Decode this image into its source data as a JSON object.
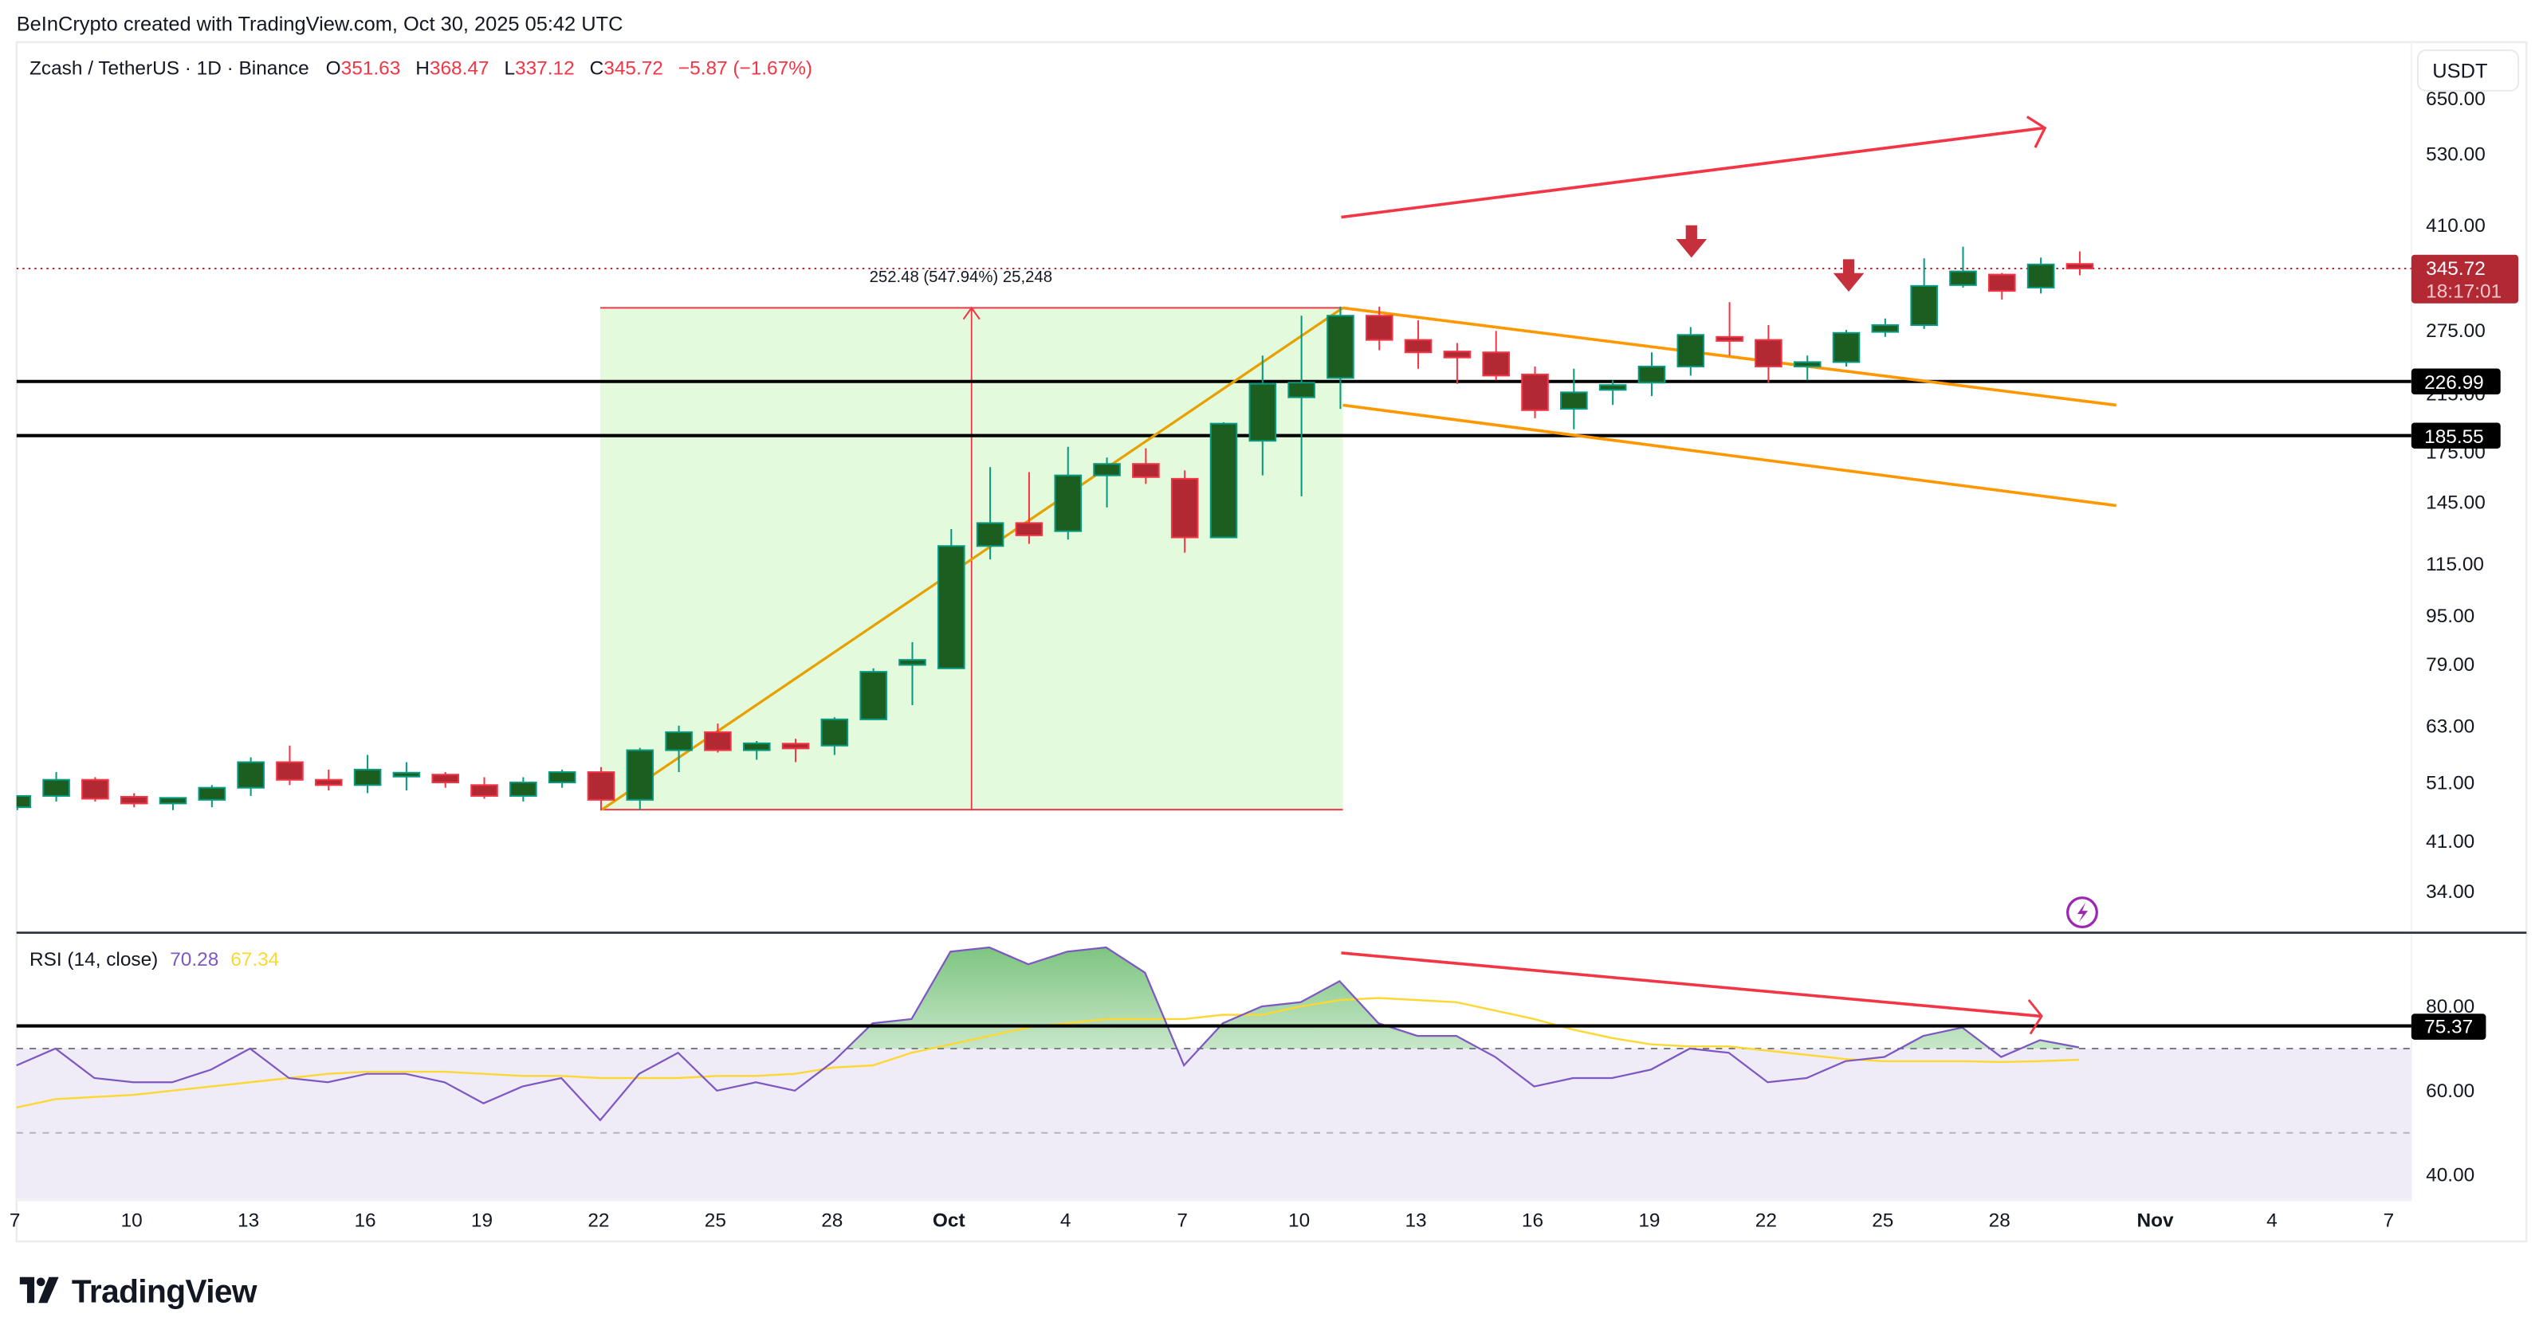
{
  "attribution": "BeInCrypto created with TradingView.com, Oct 30, 2025 05:42 UTC",
  "legend": {
    "symbol": "Zcash / TetherUS · 1D · Binance",
    "o_label": "O",
    "o_value": "351.63",
    "h_label": "H",
    "h_value": "368.47",
    "l_label": "L",
    "l_value": "337.12",
    "c_label": "C",
    "c_value": "345.72",
    "change": "−5.87 (−1.67%)"
  },
  "currency_button": "USDT",
  "price_axis": {
    "ticks": [
      "650.00",
      "530.00",
      "410.00",
      "275.00",
      "215.00",
      "175.00",
      "145.00",
      "115.00",
      "95.00",
      "79.00",
      "63.00",
      "51.00",
      "41.00",
      "34.00"
    ],
    "last_price_label": "345.72",
    "countdown_label": "18:17:01",
    "level_labels": [
      "226.99",
      "185.55"
    ]
  },
  "measure_label": "252.48 (547.94%) 25,248",
  "rsi": {
    "title": "RSI (14, close)",
    "value": "70.28",
    "ma_value": "67.34",
    "ticks": [
      "80.00",
      "60.00",
      "40.00"
    ],
    "level_label": "75.37"
  },
  "time_axis": {
    "ticks": [
      "7",
      "10",
      "13",
      "16",
      "19",
      "22",
      "25",
      "28",
      "Oct",
      "4",
      "7",
      "10",
      "13",
      "16",
      "19",
      "22",
      "25",
      "28",
      "Nov",
      "4",
      "7"
    ]
  },
  "brand": "TradingView",
  "colors": {
    "up_body": "#1b5e20",
    "up_border": "#089981",
    "down_body": "#b22833",
    "down_border": "#f23645",
    "annotation_red": "#f23645",
    "channel_orange": "#ff9800",
    "rsi_line": "#7e57c2",
    "rsi_ma": "#fdd835",
    "measure_fill": "#e3fbdc"
  },
  "chart_data": [
    {
      "type": "candlestick",
      "title": "Zcash / TetherUS · 1D · Binance",
      "xlabel": "",
      "ylabel": "USDT",
      "scale": "log",
      "ylim": [
        31,
        700
      ],
      "x": [
        "Sep 7",
        "Sep 8",
        "Sep 9",
        "Sep 10",
        "Sep 11",
        "Sep 12",
        "Sep 13",
        "Sep 14",
        "Sep 15",
        "Sep 16",
        "Sep 17",
        "Sep 18",
        "Sep 19",
        "Sep 20",
        "Sep 21",
        "Sep 22",
        "Sep 23",
        "Sep 24",
        "Sep 25",
        "Sep 26",
        "Sep 27",
        "Sep 28",
        "Sep 29",
        "Sep 30",
        "Oct 1",
        "Oct 2",
        "Oct 3",
        "Oct 4",
        "Oct 5",
        "Oct 6",
        "Oct 7",
        "Oct 8",
        "Oct 9",
        "Oct 10",
        "Oct 11",
        "Oct 12",
        "Oct 13",
        "Oct 14",
        "Oct 15",
        "Oct 16",
        "Oct 17",
        "Oct 18",
        "Oct 19",
        "Oct 20",
        "Oct 21",
        "Oct 22",
        "Oct 23",
        "Oct 24",
        "Oct 25",
        "Oct 26",
        "Oct 27",
        "Oct 28",
        "Oct 29",
        "Oct 30"
      ],
      "open": [
        46.5,
        48.5,
        51.5,
        48,
        47.5,
        47.8,
        50,
        55,
        51.5,
        50.5,
        52.5,
        52.5,
        50.5,
        48.5,
        51,
        53,
        47.8,
        57.5,
        61.5,
        57.5,
        58.5,
        58.5,
        64.5,
        79,
        78,
        123,
        134,
        130,
        160,
        167,
        158,
        127,
        182,
        214,
        230,
        290,
        265,
        252,
        253,
        233,
        205,
        220,
        226,
        240,
        268,
        265,
        240,
        244,
        273,
        280,
        325,
        338,
        322,
        351.63
      ],
      "high": [
        48.5,
        53,
        52,
        49,
        48,
        50.5,
        56,
        58.5,
        53.5,
        56.5,
        55,
        53,
        52,
        52,
        53.5,
        54,
        58,
        63,
        63.5,
        59.5,
        60,
        65,
        78,
        86,
        131,
        165,
        162,
        178,
        171,
        177,
        163,
        195,
        250,
        290,
        300,
        300,
        285,
        262,
        274,
        240,
        238,
        228,
        253,
        278,
        305,
        280,
        250,
        275,
        287,
        359,
        375,
        340,
        360,
        368.47
      ],
      "low": [
        46,
        47.5,
        47.5,
        46.5,
        46,
        46.5,
        48.5,
        50.5,
        49.5,
        49,
        49.5,
        50,
        48,
        47.5,
        50,
        46,
        46,
        53,
        57,
        55.5,
        55,
        56.5,
        64.5,
        68,
        78,
        117,
        124,
        126,
        142,
        155,
        120,
        127,
        160,
        148,
        205,
        255,
        238,
        225,
        228,
        198,
        190,
        208,
        215,
        232,
        250,
        226,
        228,
        240,
        268,
        276,
        322,
        308,
        315,
        337.12
      ],
      "close": [
        48.5,
        51.5,
        48,
        47.5,
        47.8,
        50,
        55,
        51.5,
        50.5,
        53.5,
        52.5,
        51,
        48.5,
        51,
        53,
        47.8,
        57.5,
        61.5,
        57.5,
        59,
        58.3,
        64.5,
        77,
        80.5,
        123,
        134,
        128,
        160,
        167,
        159,
        127,
        194,
        225,
        226,
        290,
        265,
        253,
        250,
        232,
        204,
        218,
        224,
        240,
        270,
        264,
        240,
        244,
        272,
        280,
        324,
        342,
        318,
        351,
        345.72
      ],
      "annotations": {
        "horizontal_levels": [
          226.99,
          185.55
        ],
        "last_price": 345.72,
        "measure": {
          "from_date": "Sep 22",
          "to_date": "Oct 11",
          "from_price": 46.08,
          "to_price": 298.56,
          "label": "252.48 (547.94%) 25,248"
        },
        "flagpole_line": {
          "from": [
            "Sep 22",
            46.08
          ],
          "to": [
            "Oct 11",
            298.56
          ]
        },
        "channel_upper": {
          "from": [
            "Oct 11",
            298.56
          ],
          "to": [
            "Nov 2",
            207
          ]
        },
        "channel_lower": {
          "from": [
            "Oct 11",
            207
          ],
          "to": [
            "Nov 2",
            143
          ]
        },
        "uptrend_arrow": {
          "from": [
            "Oct 11",
            340
          ],
          "to": [
            "Oct 29",
            580
          ]
        },
        "down_arrows": [
          "Oct 20",
          "Oct 24"
        ]
      }
    },
    {
      "type": "line",
      "title": "RSI (14, close)",
      "ylim": [
        34,
        98
      ],
      "reference_lines": {
        "upper_band": 70,
        "middle": 50,
        "drawn_level": 75.37
      },
      "x": [
        "Sep 7",
        "Sep 8",
        "Sep 9",
        "Sep 10",
        "Sep 11",
        "Sep 12",
        "Sep 13",
        "Sep 14",
        "Sep 15",
        "Sep 16",
        "Sep 17",
        "Sep 18",
        "Sep 19",
        "Sep 20",
        "Sep 21",
        "Sep 22",
        "Sep 23",
        "Sep 24",
        "Sep 25",
        "Sep 26",
        "Sep 27",
        "Sep 28",
        "Sep 29",
        "Sep 30",
        "Oct 1",
        "Oct 2",
        "Oct 3",
        "Oct 4",
        "Oct 5",
        "Oct 6",
        "Oct 7",
        "Oct 8",
        "Oct 9",
        "Oct 10",
        "Oct 11",
        "Oct 12",
        "Oct 13",
        "Oct 14",
        "Oct 15",
        "Oct 16",
        "Oct 17",
        "Oct 18",
        "Oct 19",
        "Oct 20",
        "Oct 21",
        "Oct 22",
        "Oct 23",
        "Oct 24",
        "Oct 25",
        "Oct 26",
        "Oct 27",
        "Oct 28",
        "Oct 29",
        "Oct 30"
      ],
      "series": [
        {
          "name": "RSI",
          "values": [
            66,
            70,
            63,
            62,
            62,
            65,
            70,
            63,
            62,
            64,
            64,
            62,
            57,
            61,
            63,
            53,
            64,
            69,
            60,
            62,
            60,
            67,
            76,
            77,
            93,
            94,
            90,
            93,
            94,
            88,
            66,
            76,
            80,
            81,
            86,
            76,
            73,
            73,
            68,
            61,
            63,
            63,
            65,
            70,
            69,
            62,
            63,
            67,
            68,
            73,
            75,
            68,
            72,
            70.28
          ]
        },
        {
          "name": "RSI-based MA",
          "values": [
            56,
            58,
            58.5,
            59,
            60,
            61,
            62,
            63,
            64,
            64.5,
            64.5,
            64.5,
            64,
            63.5,
            63.5,
            63,
            63,
            63,
            63.5,
            63.5,
            64,
            65.5,
            66,
            69,
            71,
            73,
            75,
            76,
            77,
            77,
            77,
            78,
            78,
            80,
            81.5,
            82,
            81.5,
            81,
            79,
            77,
            74.5,
            72.5,
            71,
            70.5,
            70.5,
            69.5,
            68.5,
            67.5,
            67,
            67,
            67,
            66.8,
            67,
            67.34
          ]
        }
      ],
      "annotations": {
        "divergence_arrow": {
          "from": [
            "Oct 11",
            90
          ],
          "to": [
            "Oct 29",
            78
          ]
        }
      }
    }
  ]
}
